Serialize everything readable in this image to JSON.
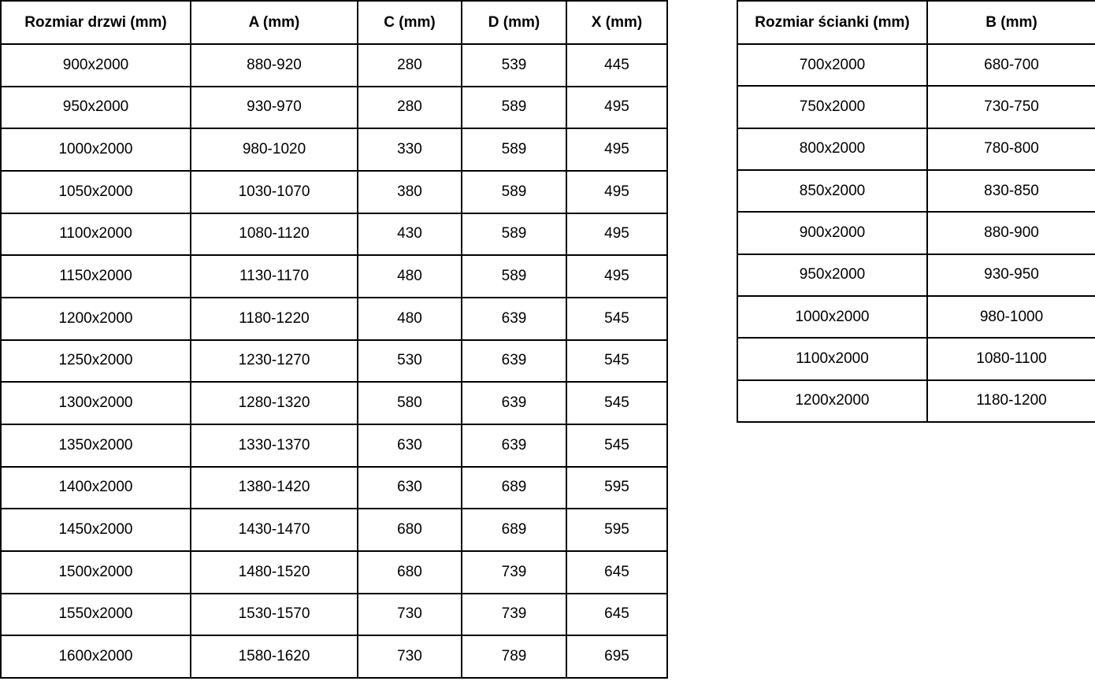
{
  "door_table": {
    "headers": [
      "Rozmiar drzwi (mm)",
      "A (mm)",
      "C (mm)",
      "D (mm)",
      "X (mm)"
    ],
    "rows": [
      [
        "900x2000",
        "880-920",
        "280",
        "539",
        "445"
      ],
      [
        "950x2000",
        "930-970",
        "280",
        "589",
        "495"
      ],
      [
        "1000x2000",
        "980-1020",
        "330",
        "589",
        "495"
      ],
      [
        "1050x2000",
        "1030-1070",
        "380",
        "589",
        "495"
      ],
      [
        "1100x2000",
        "1080-1120",
        "430",
        "589",
        "495"
      ],
      [
        "1150x2000",
        "1130-1170",
        "480",
        "589",
        "495"
      ],
      [
        "1200x2000",
        "1180-1220",
        "480",
        "639",
        "545"
      ],
      [
        "1250x2000",
        "1230-1270",
        "530",
        "639",
        "545"
      ],
      [
        "1300x2000",
        "1280-1320",
        "580",
        "639",
        "545"
      ],
      [
        "1350x2000",
        "1330-1370",
        "630",
        "639",
        "545"
      ],
      [
        "1400x2000",
        "1380-1420",
        "630",
        "689",
        "595"
      ],
      [
        "1450x2000",
        "1430-1470",
        "680",
        "689",
        "595"
      ],
      [
        "1500x2000",
        "1480-1520",
        "680",
        "739",
        "645"
      ],
      [
        "1550x2000",
        "1530-1570",
        "730",
        "739",
        "645"
      ],
      [
        "1600x2000",
        "1580-1620",
        "730",
        "789",
        "695"
      ]
    ]
  },
  "wall_table": {
    "headers": [
      "Rozmiar ścianki (mm)",
      "B (mm)"
    ],
    "rows": [
      [
        "700x2000",
        "680-700"
      ],
      [
        "750x2000",
        "730-750"
      ],
      [
        "800x2000",
        "780-800"
      ],
      [
        "850x2000",
        "830-850"
      ],
      [
        "900x2000",
        "880-900"
      ],
      [
        "950x2000",
        "930-950"
      ],
      [
        "1000x2000",
        "980-1000"
      ],
      [
        "1100x2000",
        "1080-1100"
      ],
      [
        "1200x2000",
        "1180-1200"
      ]
    ]
  },
  "colors": {
    "border": "#000000",
    "text": "#000000",
    "background": "#ffffff"
  }
}
